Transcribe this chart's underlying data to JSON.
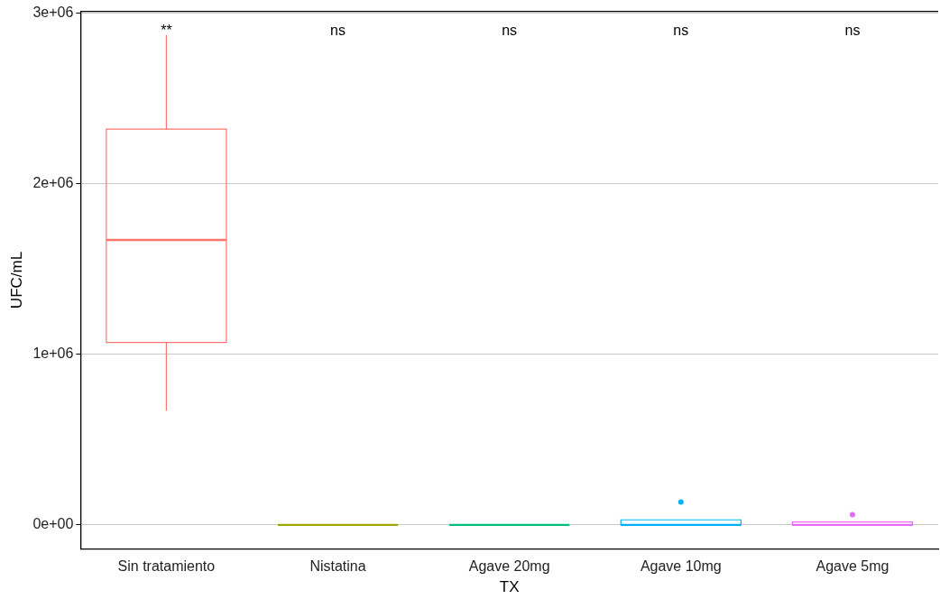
{
  "chart_data": {
    "type": "box",
    "xlabel": "TX",
    "ylabel": "UFC/mL",
    "categories": [
      "Sin tratamiento",
      "Nistatina",
      "Agave 20mg",
      "Agave 10mg",
      "Agave 5mg"
    ],
    "colors": [
      "#f8766d",
      "#a3a500",
      "#00bf7d",
      "#00b0f6",
      "#e76bf3"
    ],
    "boxes": [
      {
        "low": 670000,
        "q1": 1070000,
        "median": 1670000,
        "q3": 2320000,
        "high": 2870000
      },
      {
        "low": 0,
        "q1": 0,
        "median": 0,
        "q3": 0,
        "high": 0
      },
      {
        "low": 0,
        "q1": 0,
        "median": 0,
        "q3": 0,
        "high": 0
      },
      {
        "low": 0,
        "q1": 0,
        "median": 0,
        "q3": 30000,
        "high": 30000,
        "outliers": [
          135000
        ]
      },
      {
        "low": 0,
        "q1": 0,
        "median": 0,
        "q3": 17000,
        "high": 17000,
        "outliers": [
          60000
        ]
      }
    ],
    "ylim": [
      -140000,
      3010000
    ],
    "yticks": [
      {
        "value": 0,
        "label": "0e+00"
      },
      {
        "value": 1000000,
        "label": "1e+06"
      },
      {
        "value": 2000000,
        "label": "2e+06"
      },
      {
        "value": 3000000,
        "label": "3e+06"
      }
    ],
    "grid": "y",
    "legend": false,
    "annotations": [
      "**",
      "ns",
      "ns",
      "ns",
      "ns"
    ]
  }
}
